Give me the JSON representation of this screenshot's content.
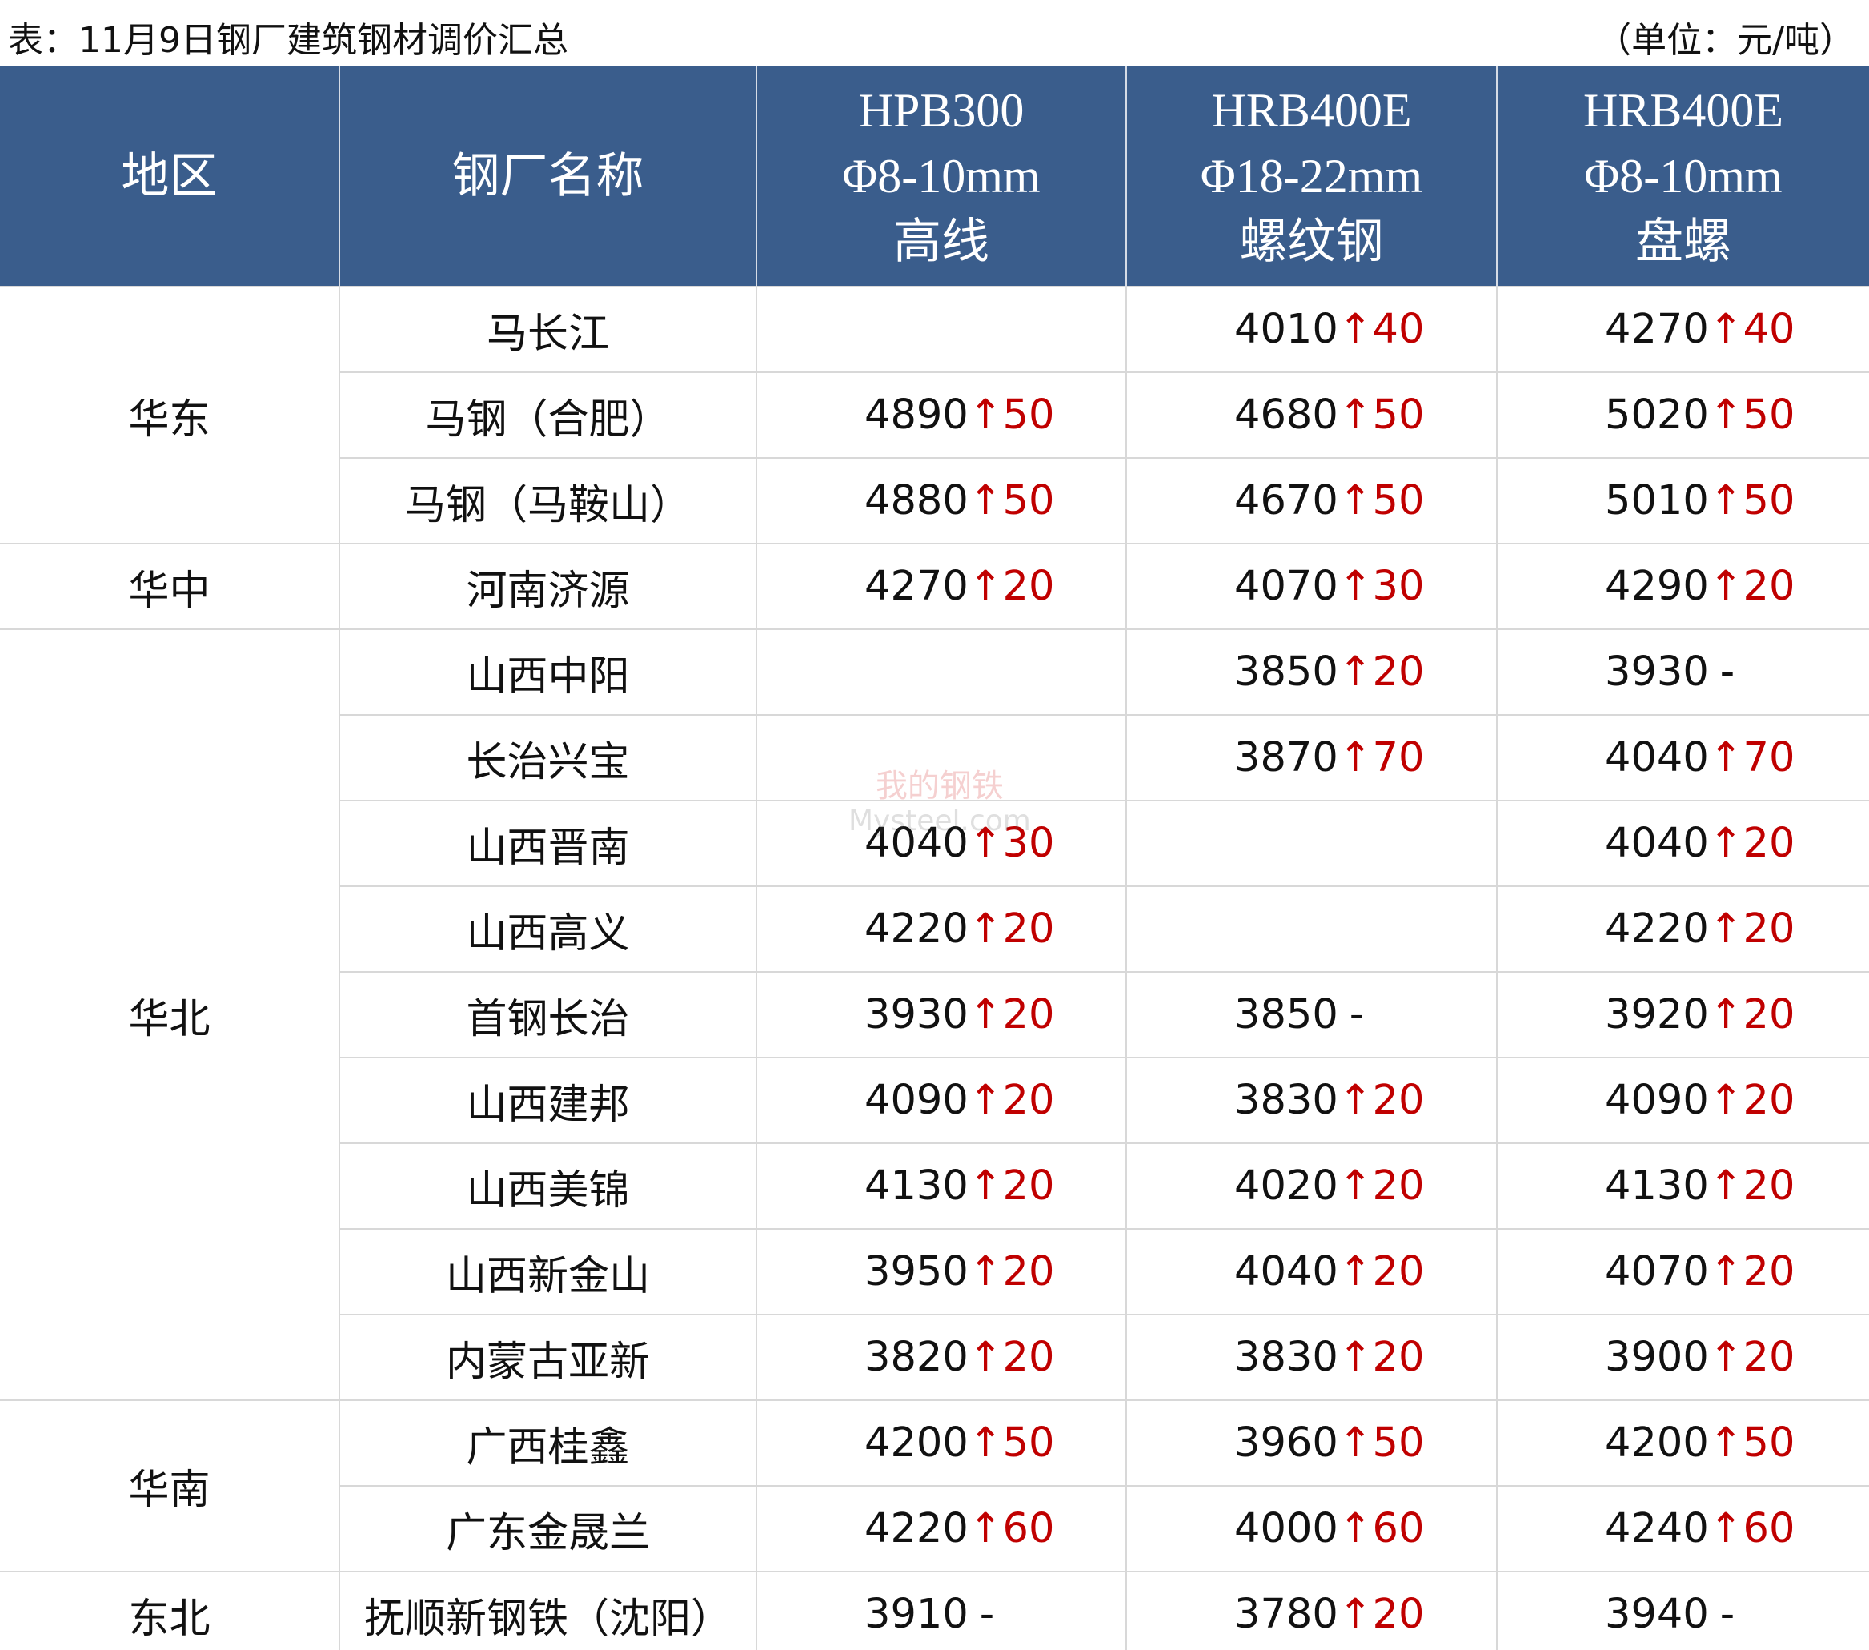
{
  "header": {
    "title": "表：11月9日钢厂建筑钢材调价汇总",
    "unit": "（单位：元/吨）"
  },
  "watermark": {
    "cn": "我的钢铁",
    "en": "Mysteel.com"
  },
  "table": {
    "columns": [
      [
        "地区"
      ],
      [
        "钢厂名称"
      ],
      [
        "HPB300",
        "Φ8-10mm",
        "高线"
      ],
      [
        "HRB400E",
        "Φ18-22mm",
        "螺纹钢"
      ],
      [
        "HRB400E",
        "Φ8-10mm",
        "盘螺"
      ]
    ],
    "groups": [
      {
        "region": "华东",
        "rows": [
          {
            "mill": "马长江",
            "prices": [
              null,
              {
                "price": 4010,
                "change": "↑40"
              },
              {
                "price": 4270,
                "change": "↑40"
              }
            ]
          },
          {
            "mill": "马钢（合肥）",
            "prices": [
              {
                "price": 4890,
                "change": "↑50"
              },
              {
                "price": 4680,
                "change": "↑50"
              },
              {
                "price": 5020,
                "change": "↑50"
              }
            ]
          },
          {
            "mill": "马钢（马鞍山）",
            "prices": [
              {
                "price": 4880,
                "change": "↑50"
              },
              {
                "price": 4670,
                "change": "↑50"
              },
              {
                "price": 5010,
                "change": "↑50"
              }
            ]
          }
        ]
      },
      {
        "region": "华中",
        "rows": [
          {
            "mill": "河南济源",
            "prices": [
              {
                "price": 4270,
                "change": "↑20"
              },
              {
                "price": 4070,
                "change": "↑30"
              },
              {
                "price": 4290,
                "change": "↑20"
              }
            ]
          }
        ]
      },
      {
        "region": "华北",
        "rows": [
          {
            "mill": "山西中阳",
            "prices": [
              null,
              {
                "price": 3850,
                "change": "↑20"
              },
              {
                "price": 3930,
                "change": "-"
              }
            ]
          },
          {
            "mill": "长治兴宝",
            "prices": [
              null,
              {
                "price": 3870,
                "change": "↑70"
              },
              {
                "price": 4040,
                "change": "↑70"
              }
            ]
          },
          {
            "mill": "山西晋南",
            "prices": [
              {
                "price": 4040,
                "change": "↑30"
              },
              null,
              {
                "price": 4040,
                "change": "↑20"
              }
            ]
          },
          {
            "mill": "山西高义",
            "prices": [
              {
                "price": 4220,
                "change": "↑20"
              },
              null,
              {
                "price": 4220,
                "change": "↑20"
              }
            ]
          },
          {
            "mill": "首钢长治",
            "prices": [
              {
                "price": 3930,
                "change": "↑20"
              },
              {
                "price": 3850,
                "change": "-"
              },
              {
                "price": 3920,
                "change": "↑20"
              }
            ]
          },
          {
            "mill": "山西建邦",
            "prices": [
              {
                "price": 4090,
                "change": "↑20"
              },
              {
                "price": 3830,
                "change": "↑20"
              },
              {
                "price": 4090,
                "change": "↑20"
              }
            ]
          },
          {
            "mill": "山西美锦",
            "prices": [
              {
                "price": 4130,
                "change": "↑20"
              },
              {
                "price": 4020,
                "change": "↑20"
              },
              {
                "price": 4130,
                "change": "↑20"
              }
            ]
          },
          {
            "mill": "山西新金山",
            "prices": [
              {
                "price": 3950,
                "change": "↑20"
              },
              {
                "price": 4040,
                "change": "↑20"
              },
              {
                "price": 4070,
                "change": "↑20"
              }
            ]
          },
          {
            "mill": "内蒙古亚新",
            "prices": [
              {
                "price": 3820,
                "change": "↑20"
              },
              {
                "price": 3830,
                "change": "↑20"
              },
              {
                "price": 3900,
                "change": "↑20"
              }
            ]
          }
        ]
      },
      {
        "region": "华南",
        "rows": [
          {
            "mill": "广西桂鑫",
            "prices": [
              {
                "price": 4200,
                "change": "↑50"
              },
              {
                "price": 3960,
                "change": "↑50"
              },
              {
                "price": 4200,
                "change": "↑50"
              }
            ]
          },
          {
            "mill": "广东金晟兰",
            "prices": [
              {
                "price": 4220,
                "change": "↑60"
              },
              {
                "price": 4000,
                "change": "↑60"
              },
              {
                "price": 4240,
                "change": "↑60"
              }
            ]
          }
        ]
      },
      {
        "region": "东北",
        "rows": [
          {
            "mill": "抚顺新钢铁（沈阳）",
            "prices": [
              {
                "price": 3910,
                "change": "-"
              },
              {
                "price": 3780,
                "change": "↑20"
              },
              {
                "price": 3940,
                "change": "-"
              }
            ]
          }
        ]
      }
    ]
  }
}
